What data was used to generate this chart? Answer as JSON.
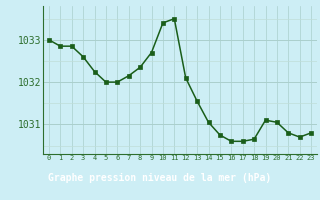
{
  "x": [
    0,
    1,
    2,
    3,
    4,
    5,
    6,
    7,
    8,
    9,
    10,
    11,
    12,
    13,
    14,
    15,
    16,
    17,
    18,
    19,
    20,
    21,
    22,
    23
  ],
  "y": [
    1033.0,
    1032.85,
    1032.85,
    1032.6,
    1032.25,
    1032.0,
    1032.0,
    1032.15,
    1032.35,
    1032.7,
    1033.4,
    1033.5,
    1032.1,
    1031.55,
    1031.05,
    1030.75,
    1030.6,
    1030.6,
    1030.65,
    1031.1,
    1031.05,
    1030.8,
    1030.7,
    1030.8
  ],
  "line_color": "#1a5e1a",
  "marker_color": "#1a5e1a",
  "bg_color": "#cdeef5",
  "grid_color_major": "#aacfcc",
  "grid_color_minor": "#c0ddd8",
  "axis_color": "#2d6e2d",
  "xlabel": "Graphe pression niveau de la mer (hPa)",
  "ytick_labels": [
    "1031",
    "1032",
    "1033"
  ],
  "ytick_values": [
    1031,
    1032,
    1033
  ],
  "ylim": [
    1030.3,
    1033.8
  ],
  "xlim": [
    -0.5,
    23.5
  ],
  "bottom_bg_color": "#4a7a4a",
  "bottom_text_color": "#ffffff"
}
